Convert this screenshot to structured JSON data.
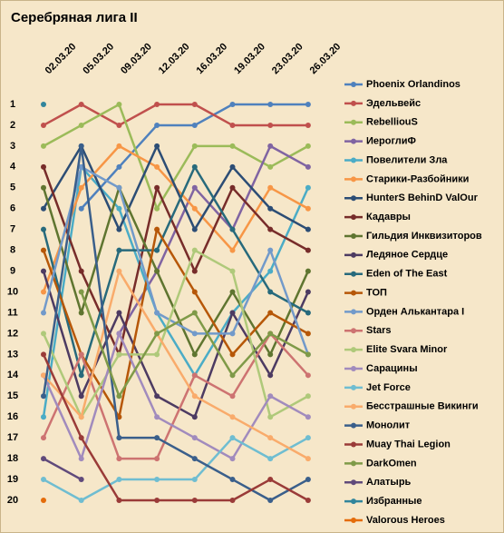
{
  "chart_data": {
    "type": "line",
    "title": "Серебряная лига II",
    "categories": [
      "02.03.20",
      "05.03.20",
      "09.03.20",
      "12.03.20",
      "16.03.20",
      "19.03.20",
      "23.03.20",
      "26.03.20"
    ],
    "ylim": [
      20,
      1
    ],
    "yticks": [
      1,
      2,
      3,
      4,
      5,
      6,
      7,
      8,
      9,
      10,
      11,
      12,
      13,
      14,
      15,
      16,
      17,
      18,
      19,
      20
    ],
    "series": [
      {
        "name": "Phoenix Orlandinos",
        "color": "#4f81bd",
        "values": [
          null,
          6,
          4,
          2,
          2,
          1,
          1,
          1
        ]
      },
      {
        "name": "Эдельвейс",
        "color": "#c0504d",
        "values": [
          2,
          1,
          2,
          1,
          1,
          2,
          2,
          2
        ]
      },
      {
        "name": "RebelliouS",
        "color": "#9bbb59",
        "values": [
          3,
          2,
          1,
          6,
          3,
          3,
          4,
          3
        ]
      },
      {
        "name": "ИероглиФ",
        "color": "#8064a2",
        "values": [
          null,
          null,
          12,
          9,
          5,
          7,
          3,
          4
        ]
      },
      {
        "name": "Повелители Зла",
        "color": "#4bacc6",
        "values": [
          16,
          4,
          6,
          11,
          14,
          11,
          9,
          5
        ]
      },
      {
        "name": "Старики-Разбойники",
        "color": "#f79646",
        "values": [
          10,
          5,
          3,
          4,
          6,
          8,
          5,
          6
        ]
      },
      {
        "name": "HunterS BehinD ValOur",
        "color": "#2c4d75",
        "values": [
          6,
          3,
          7,
          3,
          7,
          4,
          6,
          7
        ]
      },
      {
        "name": "Кадавры",
        "color": "#772c2a",
        "values": [
          4,
          9,
          13,
          5,
          9,
          5,
          7,
          8
        ]
      },
      {
        "name": "Гильдия Инквизиторов",
        "color": "#5f7530",
        "values": [
          5,
          11,
          5,
          9,
          13,
          10,
          13,
          9
        ]
      },
      {
        "name": "Ледяное Сердце",
        "color": "#4d3b62",
        "values": [
          9,
          15,
          11,
          15,
          16,
          11,
          14,
          10
        ]
      },
      {
        "name": "Eden of The East",
        "color": "#276a7c",
        "values": [
          7,
          14,
          8,
          8,
          4,
          7,
          10,
          11
        ]
      },
      {
        "name": "ТОП",
        "color": "#b65708",
        "values": [
          8,
          13,
          16,
          7,
          10,
          13,
          11,
          12
        ]
      },
      {
        "name": "Орден Алькантара I",
        "color": "#729aca",
        "values": [
          11,
          4,
          5,
          11,
          12,
          12,
          8,
          13
        ]
      },
      {
        "name": "Stars",
        "color": "#cd7371",
        "values": [
          17,
          13,
          18,
          18,
          14,
          15,
          12,
          14
        ]
      },
      {
        "name": "Elite Svara Minor",
        "color": "#afc97a",
        "values": [
          12,
          16,
          13,
          13,
          8,
          9,
          16,
          15
        ]
      },
      {
        "name": "Сарацины",
        "color": "#a18bbd",
        "values": [
          14,
          18,
          12,
          16,
          17,
          18,
          15,
          16
        ]
      },
      {
        "name": "Jet Force",
        "color": "#6fbdd1",
        "values": [
          19,
          20,
          19,
          19,
          19,
          17,
          18,
          17
        ]
      },
      {
        "name": "Бесстрашные Викинги",
        "color": "#f9ab6b",
        "values": [
          14,
          16,
          9,
          12,
          15,
          16,
          17,
          18
        ]
      },
      {
        "name": "Монолит",
        "color": "#3a5f8b",
        "values": [
          15,
          3,
          17,
          17,
          18,
          19,
          20,
          19
        ]
      },
      {
        "name": "Muay Thai Legion",
        "color": "#9a3b38",
        "values": [
          13,
          17,
          20,
          20,
          20,
          20,
          19,
          20
        ]
      },
      {
        "name": "DarkOmen",
        "color": "#7f9a48",
        "values": [
          null,
          10,
          15,
          12,
          11,
          14,
          12,
          13
        ]
      },
      {
        "name": "Алатырь",
        "color": "#604a7b",
        "values": [
          18,
          19,
          null,
          null,
          null,
          null,
          null,
          null
        ]
      },
      {
        "name": "Избранные",
        "color": "#31859c",
        "values": [
          1,
          null,
          null,
          null,
          null,
          null,
          null,
          null
        ]
      },
      {
        "name": "Valorous Heroes",
        "color": "#e46c0a",
        "values": [
          20,
          null,
          null,
          null,
          null,
          null,
          null,
          null
        ]
      }
    ]
  }
}
